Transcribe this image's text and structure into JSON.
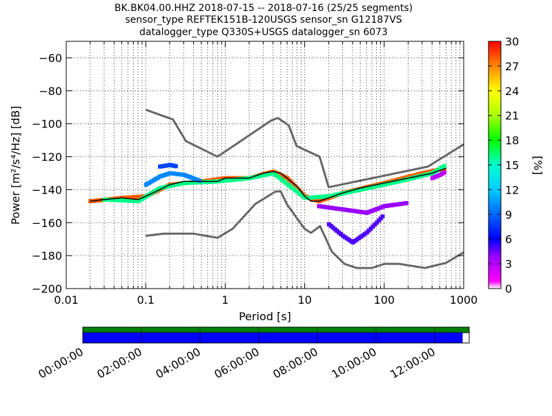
{
  "header": {
    "title_line1": "BK.BK04.00.HHZ   2018-07-15 -- 2018-07-16  (25/25 segments)",
    "title_line2": "sensor_type REFTEK151B-120USGS sensor_sn G12187VS",
    "title_line3": "datalogger_type Q330S+USGS datalogger_sn 6073"
  },
  "colorbar": {
    "label": "[%]",
    "ticks": [
      "0",
      "3",
      "6",
      "9",
      "12",
      "15",
      "18",
      "21",
      "24",
      "27",
      "30"
    ],
    "range": [
      0,
      30
    ]
  },
  "timeline": {
    "labels": [
      "00:00:00",
      "02:00:00",
      "04:00:00",
      "06:00:00",
      "08:00:00",
      "10:00:00",
      "12:00:00"
    ],
    "coverage_fraction": 0.983,
    "colors": {
      "data": "#0000ff",
      "gaps": "#008000"
    }
  },
  "chart_data": {
    "type": "heatmap",
    "title": "BK.BK04.00.HHZ   2018-07-15 -- 2018-07-16  (25/25 segments)",
    "xlabel": "Period [s]",
    "ylabel": "Power [m²/s⁴/Hz] [dB]",
    "x_scale": "log",
    "xlim": [
      0.01,
      1000
    ],
    "ylim": [
      -200,
      -50
    ],
    "x_tick_labels": [
      "0.01",
      "0.1",
      "1",
      "10",
      "100",
      "1000"
    ],
    "x_ticks": [
      0.01,
      0.1,
      1,
      10,
      100,
      1000
    ],
    "y_tick_labels": [
      "−200",
      "−180",
      "−160",
      "−140",
      "−120",
      "−100",
      "−80",
      "−60"
    ],
    "y_ticks": [
      -200,
      -180,
      -160,
      -140,
      -120,
      -100,
      -80,
      -60
    ],
    "grid": true,
    "noise_models": {
      "high": {
        "x": [
          0.1,
          0.22,
          0.32,
          0.8,
          3.8,
          4.6,
          6.3,
          7.9,
          15.4,
          20,
          354.8,
          1000
        ],
        "y": [
          -91.5,
          -97.4,
          -110.5,
          -120,
          -98,
          -96.5,
          -101,
          -113.5,
          -120,
          -138.5,
          -126,
          -112.5
        ]
      },
      "low": {
        "x": [
          0.1,
          0.17,
          0.4,
          0.8,
          1.24,
          2.4,
          4.3,
          5,
          6,
          10,
          12,
          15.6,
          21.9,
          31.6,
          45,
          70,
          101,
          154,
          328,
          600,
          1000
        ],
        "y": [
          -168,
          -166.7,
          -166.7,
          -169.2,
          -163.7,
          -148.6,
          -141.1,
          -141.1,
          -149,
          -163.8,
          -166.2,
          -162.1,
          -177.5,
          -185,
          -187.5,
          -187.5,
          -185,
          -185,
          -187.5,
          -184.4,
          -178
        ]
      }
    },
    "mode_curve": {
      "x": [
        0.02,
        0.03,
        0.05,
        0.08,
        0.1,
        0.15,
        0.2,
        0.3,
        0.5,
        0.8,
        1,
        1.5,
        2,
        3,
        4,
        5,
        6,
        8,
        10,
        12,
        15,
        20,
        30,
        50,
        100,
        200,
        400,
        600
      ],
      "y": [
        -147,
        -146,
        -145,
        -146,
        -144,
        -140,
        -137,
        -135,
        -135,
        -135,
        -133,
        -133,
        -133,
        -130,
        -129,
        -130,
        -133,
        -138,
        -144,
        -147,
        -147,
        -145,
        -142,
        -139,
        -136,
        -133,
        -130,
        -127
      ]
    },
    "pdf_bands": [
      {
        "percent": 28,
        "x": [
          0.02,
          0.05,
          0.1,
          0.2,
          0.5,
          1,
          2,
          4,
          6,
          10,
          15,
          30,
          100,
          300,
          600
        ],
        "y": [
          -147,
          -145,
          -144,
          -137,
          -135,
          -133,
          -133,
          -129,
          -133,
          -144,
          -147,
          -142,
          -136,
          -130,
          -127
        ]
      },
      {
        "percent": 16,
        "x": [
          0.03,
          0.08,
          0.15,
          0.3,
          0.8,
          2,
          4,
          10,
          20,
          50,
          150,
          400,
          600
        ],
        "y": [
          -146,
          -147,
          -139,
          -136,
          -135,
          -133,
          -130,
          -145,
          -144,
          -140,
          -135,
          -130,
          -125
        ]
      },
      {
        "percent": 10,
        "x": [
          0.1,
          0.15,
          0.2,
          0.3,
          0.5
        ],
        "y": [
          -137,
          -132,
          -130,
          -131,
          -135
        ]
      },
      {
        "percent": 8,
        "x": [
          0.15,
          0.2,
          0.25
        ],
        "y": [
          -126,
          -125,
          -126
        ]
      },
      {
        "percent": 5,
        "x": [
          20,
          30,
          40,
          60,
          80,
          100
        ],
        "y": [
          -161,
          -168,
          -172,
          -166,
          -160,
          -155
        ]
      },
      {
        "percent": 4,
        "x": [
          15,
          30,
          60,
          100,
          200
        ],
        "y": [
          -150,
          -152,
          -154,
          -150,
          -148
        ]
      },
      {
        "percent": 3,
        "x": [
          400,
          500,
          600
        ],
        "y": [
          -133,
          -131,
          -129
        ]
      }
    ]
  }
}
